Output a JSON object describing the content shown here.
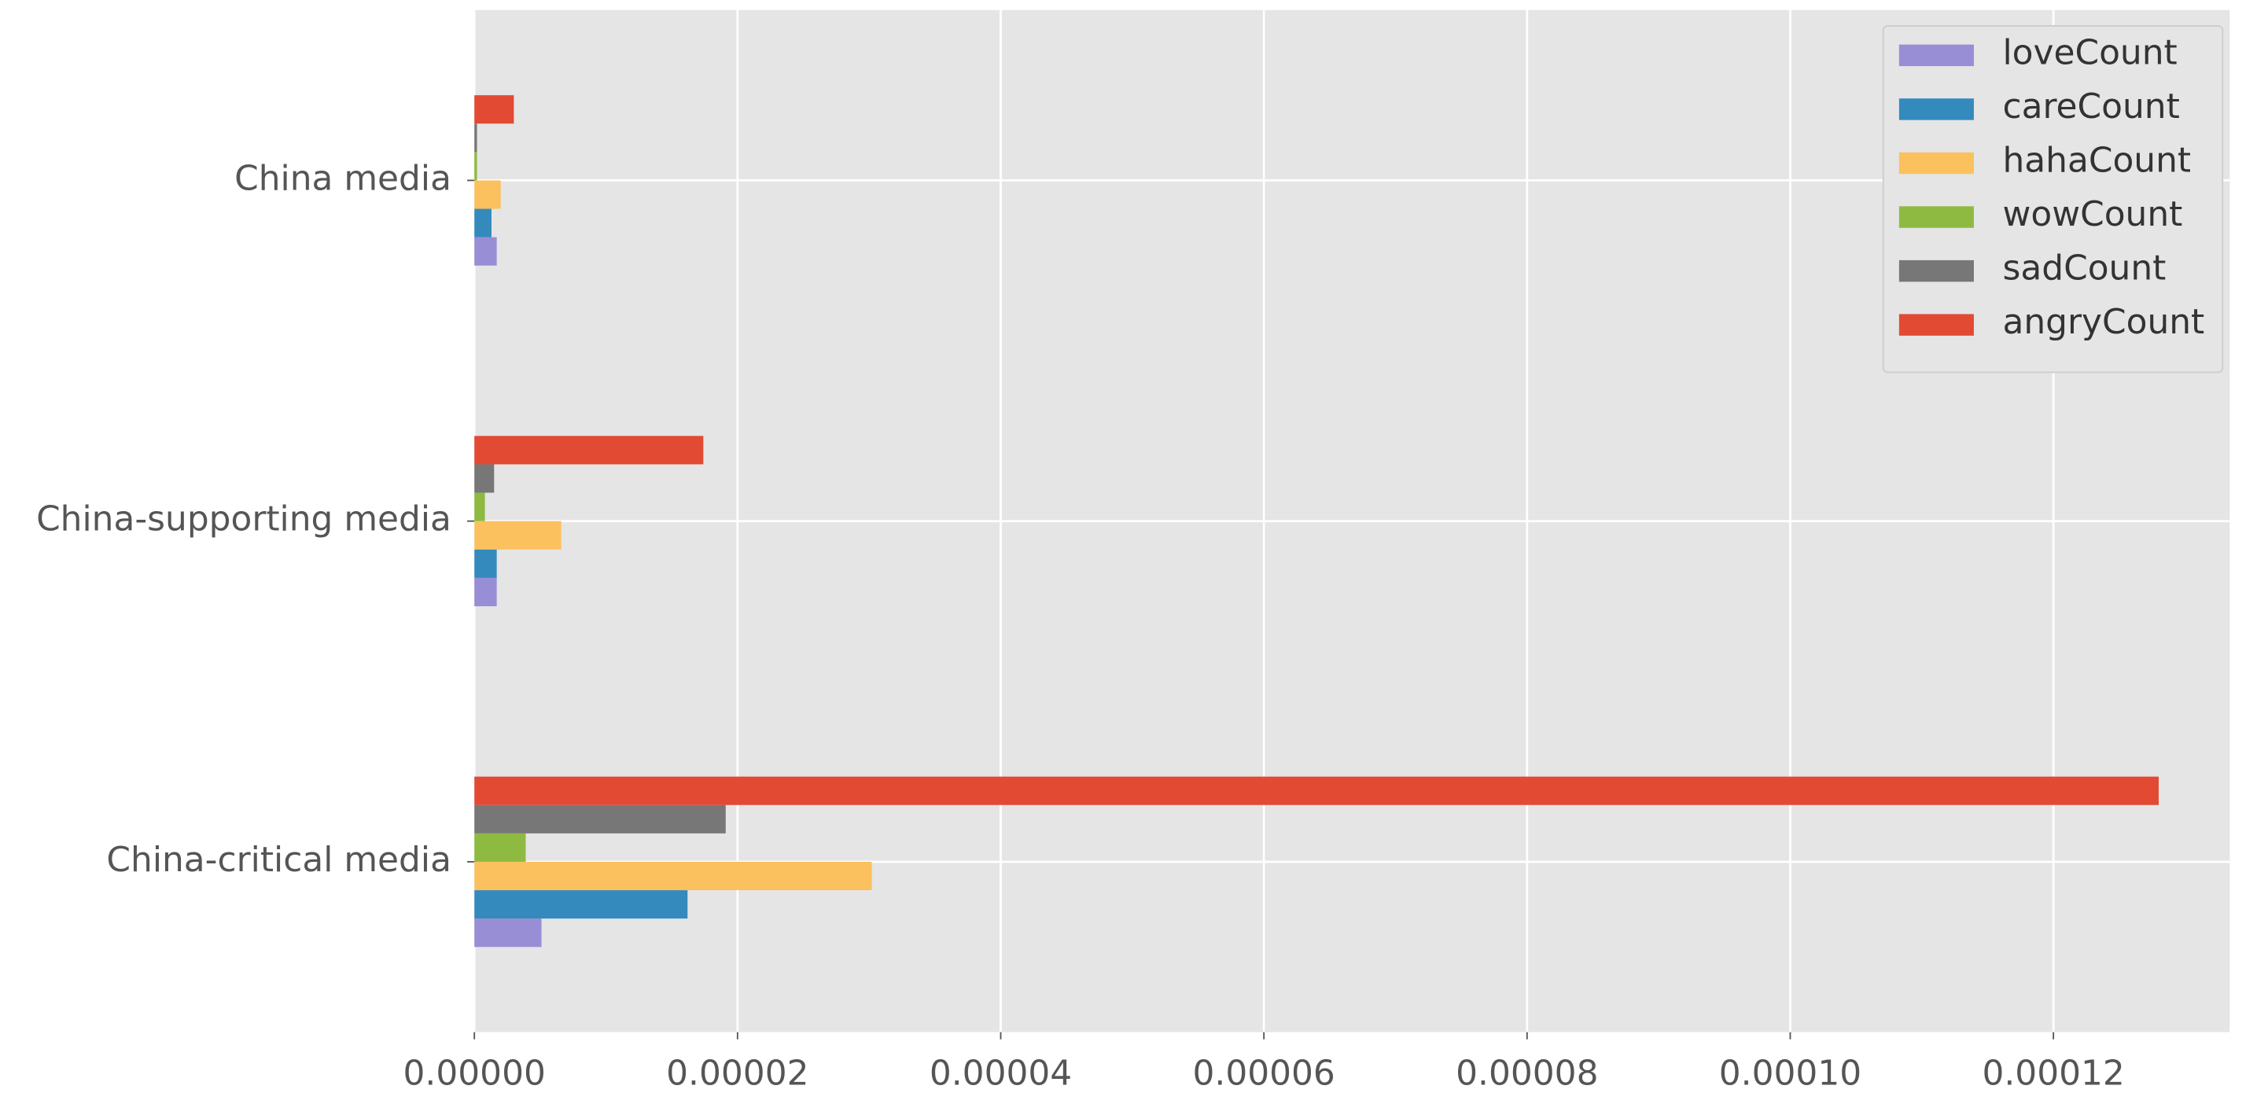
{
  "chart_data": {
    "type": "barh",
    "categories": [
      "China-critical media",
      "China-supporting media",
      "China media"
    ],
    "series": [
      {
        "name": "loveCount",
        "color": "#988ED5",
        "values": [
          5.1e-06,
          1.7e-06,
          1.7e-06
        ]
      },
      {
        "name": "careCount",
        "color": "#348ABD",
        "values": [
          1.62e-05,
          1.7e-06,
          1.3e-06
        ]
      },
      {
        "name": "hahaCount",
        "color": "#FBC15E",
        "values": [
          3.02e-05,
          6.6e-06,
          2e-06
        ]
      },
      {
        "name": "wowCount",
        "color": "#8EBA42",
        "values": [
          3.9e-06,
          8e-07,
          2e-07
        ]
      },
      {
        "name": "sadCount",
        "color": "#777777",
        "values": [
          1.91e-05,
          1.5e-06,
          2e-07
        ]
      },
      {
        "name": "angryCount",
        "color": "#E24A33",
        "values": [
          0.000128,
          1.74e-05,
          3e-06
        ]
      }
    ],
    "xlim": [
      0,
      0.0001334
    ],
    "xticks": [
      {
        "value": 0,
        "label": "0.00000"
      },
      {
        "value": 2e-05,
        "label": "0.00002"
      },
      {
        "value": 4e-05,
        "label": "0.00004"
      },
      {
        "value": 6e-05,
        "label": "0.00006"
      },
      {
        "value": 8e-05,
        "label": "0.00008"
      },
      {
        "value": 0.0001,
        "label": "0.00010"
      },
      {
        "value": 0.00012,
        "label": "0.00012"
      }
    ],
    "grid": true,
    "legend": "upper right",
    "background": "#E5E5E5"
  }
}
